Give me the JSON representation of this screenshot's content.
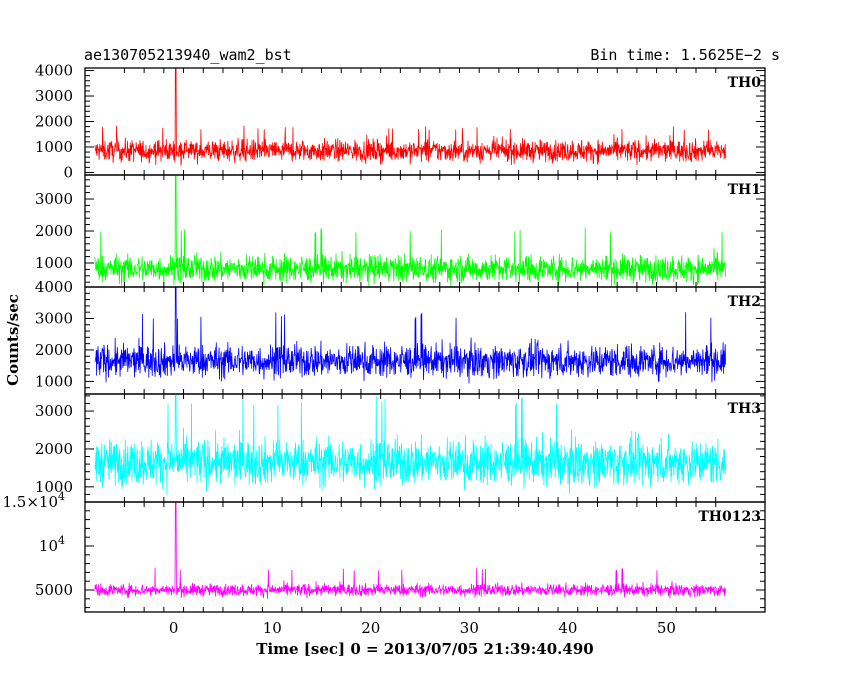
{
  "chart_data": {
    "type": "line",
    "title": "ae130705213940_wam2_bst",
    "bin_time": "Bin time: 1.5625E−2 s",
    "xlabel": "Time [sec] 0 = 2013/07/05 21:39:40.490",
    "ylabel": "Counts/sec",
    "xlim": [
      -9,
      60
    ],
    "x_ticks": [
      {
        "value": 0,
        "label": "0"
      },
      {
        "value": 10,
        "label": "10"
      },
      {
        "value": 20,
        "label": "20"
      },
      {
        "value": 30,
        "label": "30"
      },
      {
        "value": 40,
        "label": "40"
      },
      {
        "value": 50,
        "label": "50"
      }
    ],
    "data_xrange": [
      -8,
      56
    ],
    "panels": [
      {
        "name": "TH0",
        "color": "#ff0000",
        "ylim": [
          -100,
          4100
        ],
        "y_ticks": [
          {
            "value": 0,
            "label": "0"
          },
          {
            "value": 1000,
            "label": "1000"
          },
          {
            "value": 2000,
            "label": "2000"
          },
          {
            "value": 3000,
            "label": "3000"
          },
          {
            "value": 4000,
            "label": "4000"
          }
        ],
        "mean": 850,
        "spread": 430,
        "min": 250,
        "max": 1850,
        "burst_time": 0.2,
        "burst_peak": 4100
      },
      {
        "name": "TH1",
        "color": "#00ff00",
        "ylim": [
          250,
          3750
        ],
        "y_ticks": [
          {
            "value": 1000,
            "label": "1000"
          },
          {
            "value": 2000,
            "label": "2000"
          },
          {
            "value": 3000,
            "label": "3000"
          }
        ],
        "mean": 820,
        "spread": 420,
        "min": 250,
        "max": 2100,
        "burst_time": 0.2,
        "burst_peak": 3750
      },
      {
        "name": "TH2",
        "color": "#0000ff",
        "ylim": [
          600,
          4000
        ],
        "y_ticks": [
          {
            "value": 1000,
            "label": "1000"
          },
          {
            "value": 2000,
            "label": "2000"
          },
          {
            "value": 3000,
            "label": "3000"
          },
          {
            "value": 4000,
            "label": "4000"
          }
        ],
        "mean": 1650,
        "spread": 520,
        "min": 700,
        "max": 3200,
        "burst_time": 0.2,
        "burst_peak": 4000
      },
      {
        "name": "TH3",
        "color": "#00ffff",
        "ylim": [
          600,
          3450
        ],
        "y_ticks": [
          {
            "value": 1000,
            "label": "1000"
          },
          {
            "value": 2000,
            "label": "2000"
          },
          {
            "value": 3000,
            "label": "3000"
          }
        ],
        "mean": 1650,
        "spread": 600,
        "min": 700,
        "max": 3400,
        "burst_time": 0.2,
        "burst_peak": 3450
      },
      {
        "name": "TH0123",
        "color": "#ff00ff",
        "ylim": [
          2500,
          15000
        ],
        "y_ticks": [
          {
            "value": 5000,
            "label": "5000"
          },
          {
            "value": 10000,
            "label": "10",
            "sup": "4"
          },
          {
            "value": 15000,
            "label": "1.5×10",
            "sup": "4"
          }
        ],
        "mean": 5000,
        "spread": 700,
        "min": 3000,
        "max": 7500,
        "burst_time": 0.2,
        "burst_peak": 15000
      }
    ]
  }
}
